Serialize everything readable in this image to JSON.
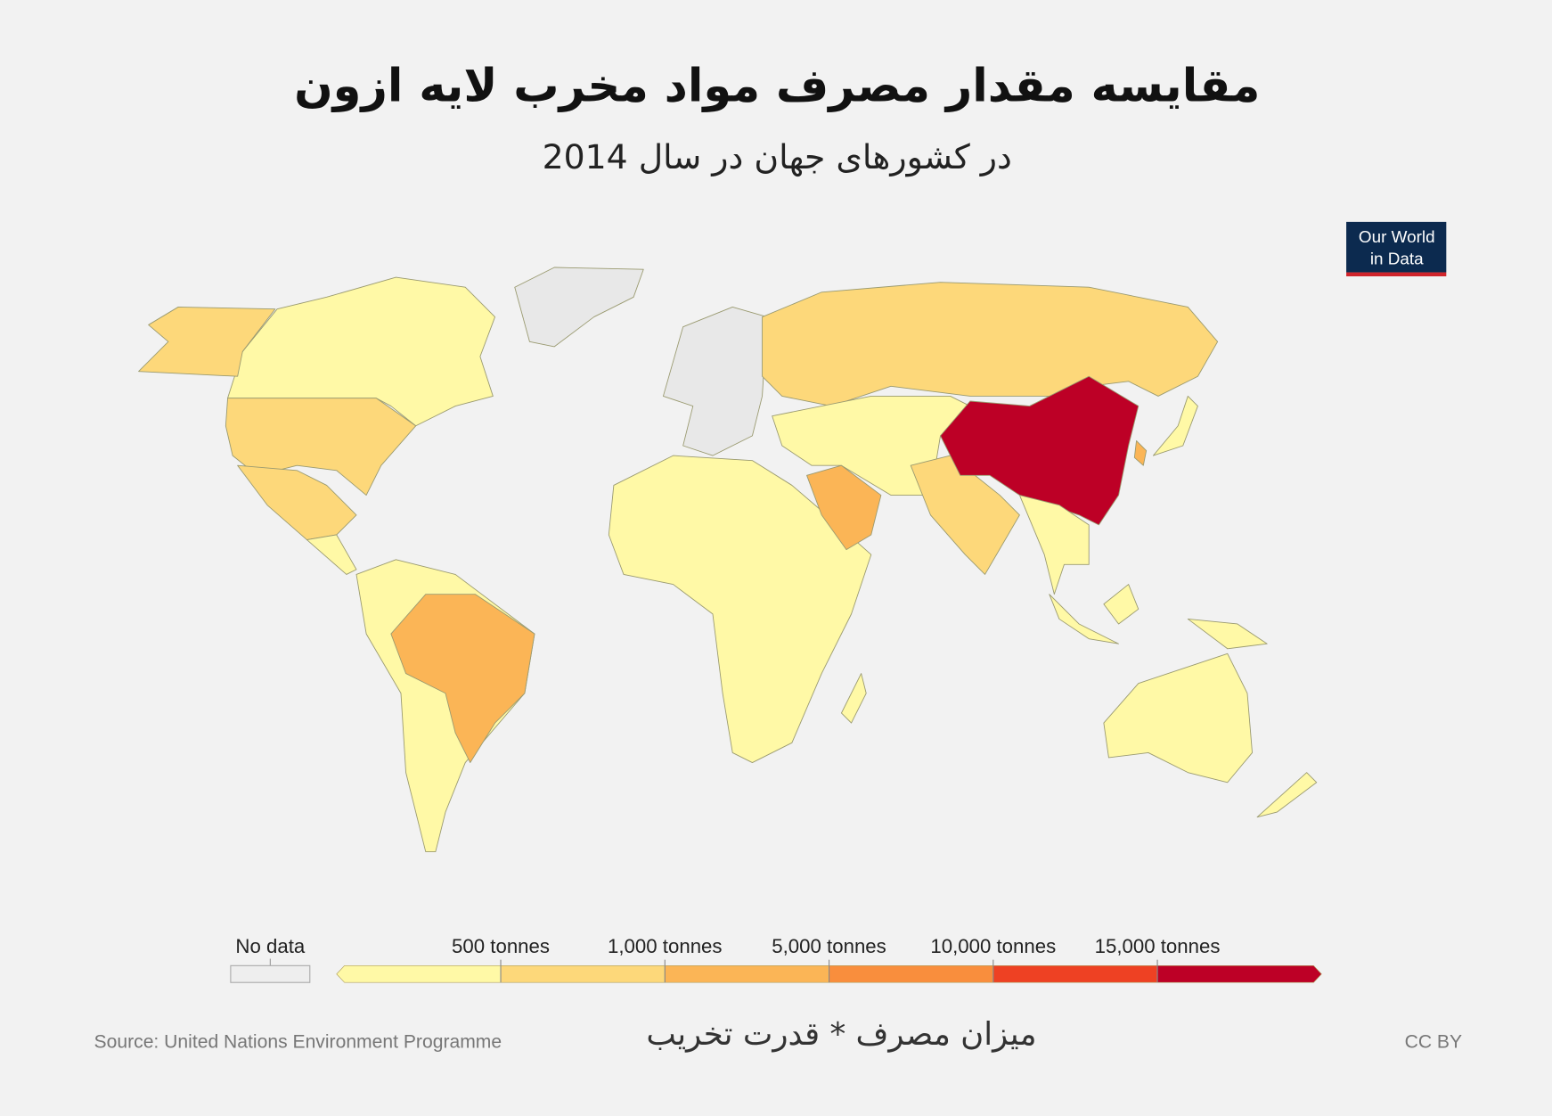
{
  "header": {
    "title": "مقایسه مقدار مصرف مواد مخرب لایه ازون",
    "subtitle": "در کشورهای جهان در سال 2014"
  },
  "logo": {
    "line1": "Our World",
    "line2": "in Data"
  },
  "legend": {
    "no_data_label": "No data",
    "no_data_color": "#eeeeee",
    "ticks": [
      {
        "value": 500,
        "label": "500 tonnes"
      },
      {
        "value": 1000,
        "label": "1,000 tonnes"
      },
      {
        "value": 5000,
        "label": "5,000 tonnes"
      },
      {
        "value": 10000,
        "label": "10,000 tonnes"
      },
      {
        "value": 15000,
        "label": "15,000 tonnes"
      }
    ],
    "colors": [
      "#fff9a6",
      "#fdd87a",
      "#fbb556",
      "#f98e3d",
      "#ee4123",
      "#bd0026"
    ],
    "title": "میزان مصرف * قدرت تخریب"
  },
  "footer": {
    "source": "Source: United Nations Environment Programme",
    "license": "CC BY"
  }
}
